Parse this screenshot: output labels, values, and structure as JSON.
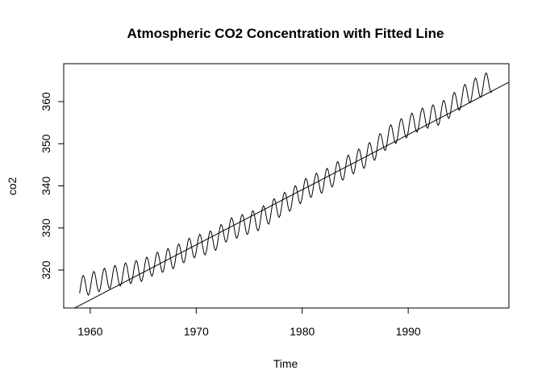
{
  "chart_data": {
    "type": "line",
    "title": "Atmospheric CO2 Concentration with Fitted Line",
    "xlabel": "Time",
    "ylabel": "co2",
    "xlim": [
      1957.5,
      1999.5
    ],
    "ylim": [
      311,
      369
    ],
    "x_ticks": [
      1960,
      1970,
      1980,
      1990
    ],
    "y_ticks": [
      320,
      330,
      340,
      350,
      360
    ],
    "grid": false,
    "legend": "none",
    "series": [
      {
        "kind": "monthly-seasonal",
        "start_year": 1959,
        "end_year": 1997,
        "annual_mean": [
          315.8,
          316.8,
          317.6,
          318.3,
          318.9,
          319.5,
          320.0,
          321.4,
          322.2,
          323.1,
          324.6,
          325.7,
          326.3,
          327.5,
          329.6,
          330.3,
          331.2,
          332.1,
          333.8,
          335.4,
          336.8,
          338.7,
          340.1,
          341.0,
          342.6,
          344.2,
          345.7,
          347.0,
          349.0,
          351.4,
          352.9,
          354.2,
          355.6,
          356.4,
          357.1,
          358.9,
          360.9,
          362.6,
          363.8
        ],
        "seasonal_amplitude": 2.6,
        "color": "#000000"
      },
      {
        "kind": "fitted-line",
        "x": [
          1958.0,
          1999.5
        ],
        "y": [
          310.3,
          364.6
        ],
        "color": "#000000"
      }
    ]
  }
}
